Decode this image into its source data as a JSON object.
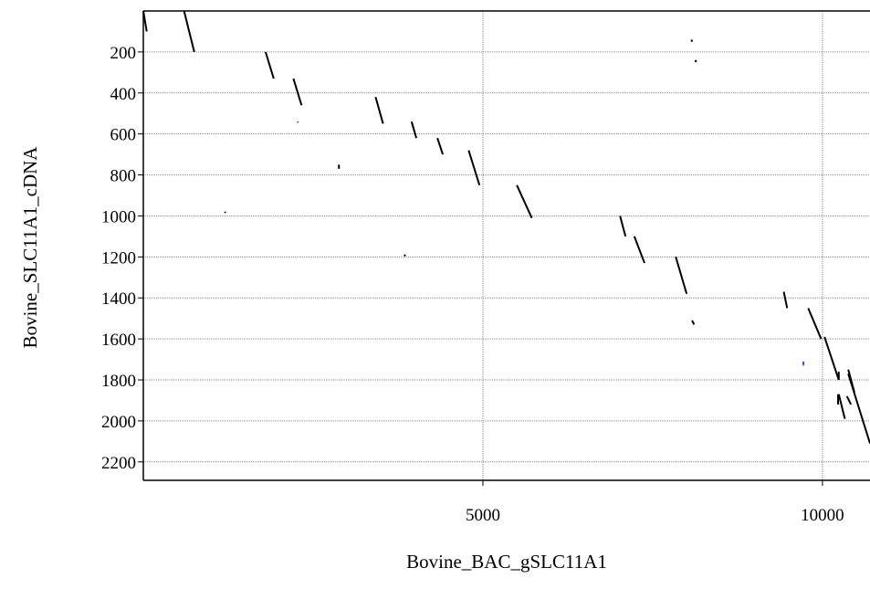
{
  "chart_data": {
    "type": "scatter",
    "xlabel": "Bovine_BAC_gSLC11A1",
    "ylabel": "Bovine_SLC11A1_cDNA",
    "xlim": [
      0,
      10700
    ],
    "ylim": [
      0,
      2290
    ],
    "y_inverted": true,
    "x_ticks": [
      5000,
      10000
    ],
    "y_ticks": [
      200,
      400,
      600,
      800,
      1000,
      1200,
      1400,
      1600,
      1800,
      2000,
      2200
    ],
    "grid": true,
    "series": [
      {
        "color": "#000000",
        "segments": [
          [
            [
              0,
              0
            ],
            [
              50,
              100
            ]
          ],
          [
            [
              600,
              0
            ],
            [
              750,
              200
            ]
          ],
          [
            [
              1800,
              200
            ],
            [
              1920,
              330
            ]
          ],
          [
            [
              2210,
              330
            ],
            [
              2330,
              460
            ]
          ],
          [
            [
              3420,
              420
            ],
            [
              3530,
              550
            ]
          ],
          [
            [
              3950,
              540
            ],
            [
              4020,
              620
            ]
          ],
          [
            [
              4330,
              620
            ],
            [
              4410,
              700
            ]
          ],
          [
            [
              4790,
              680
            ],
            [
              4950,
              850
            ]
          ],
          [
            [
              5500,
              850
            ],
            [
              5720,
              1010
            ]
          ],
          [
            [
              7020,
              1000
            ],
            [
              7100,
              1100
            ]
          ],
          [
            [
              7230,
              1100
            ],
            [
              7380,
              1230
            ]
          ],
          [
            [
              7840,
              1200
            ],
            [
              8000,
              1380
            ]
          ],
          [
            [
              8080,
              1510
            ],
            [
              8110,
              1530
            ]
          ],
          [
            [
              9430,
              1370
            ],
            [
              9480,
              1450
            ]
          ],
          [
            [
              9790,
              1450
            ],
            [
              9980,
              1600
            ]
          ],
          [
            [
              10030,
              1590
            ],
            [
              10240,
              1800
            ]
          ],
          [
            [
              10240,
              1760
            ],
            [
              10240,
              1800
            ]
          ],
          [
            [
              10240,
              1870
            ],
            [
              10330,
              1990
            ]
          ],
          [
            [
              10230,
              1870
            ],
            [
              10230,
              1920
            ]
          ],
          [
            [
              10380,
              1750
            ],
            [
              10470,
              1860
            ]
          ],
          [
            [
              10360,
              1880
            ],
            [
              10420,
              1920
            ]
          ],
          [
            [
              10380,
              1770
            ],
            [
              10700,
              2110
            ]
          ],
          [
            [
              2880,
              750
            ],
            [
              2880,
              770
            ]
          ],
          [
            [
              1200,
              980
            ],
            [
              1210,
              985
            ]
          ],
          [
            [
              3840,
              1190
            ],
            [
              3860,
              1195
            ]
          ],
          [
            [
              8070,
              140
            ],
            [
              8080,
              150
            ]
          ],
          [
            [
              8130,
              240
            ],
            [
              8140,
              250
            ]
          ]
        ]
      },
      {
        "color": "#3355cc",
        "segments": [
          [
            [
              2270,
              540
            ],
            [
              2280,
              545
            ]
          ],
          [
            [
              9720,
              1710
            ],
            [
              9720,
              1730
            ]
          ]
        ]
      }
    ]
  }
}
